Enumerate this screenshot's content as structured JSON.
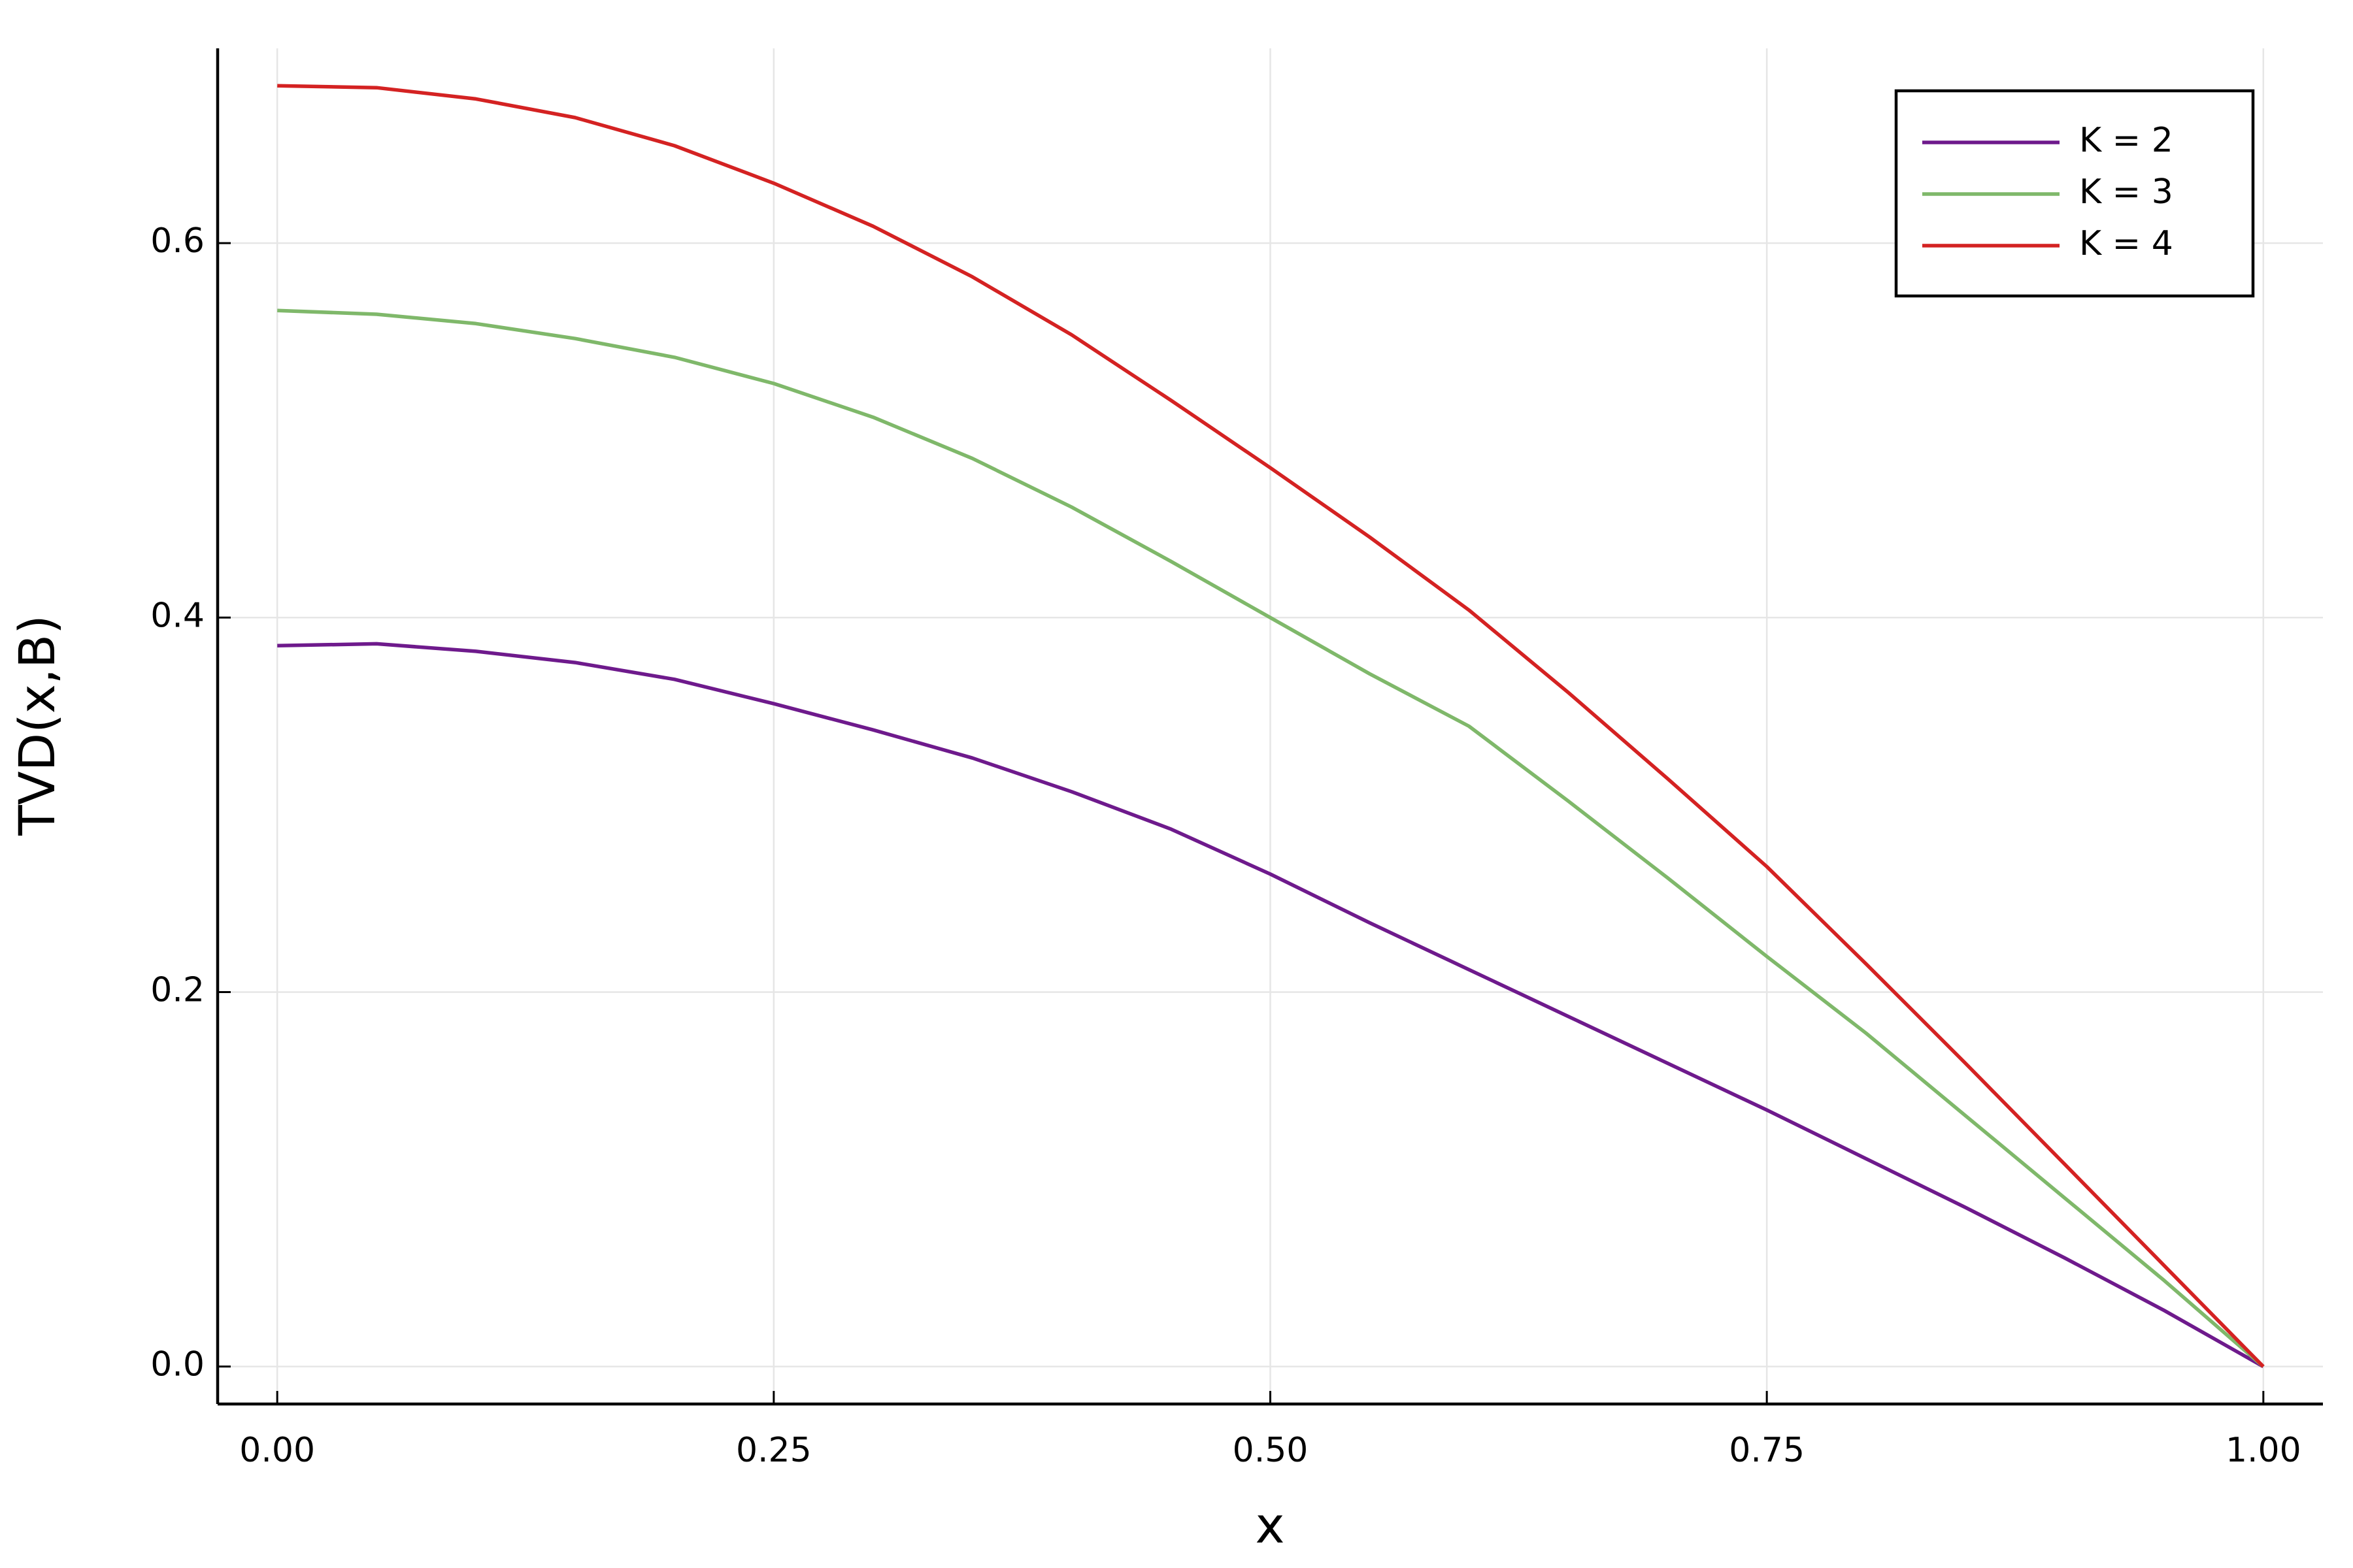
{
  "chart_data": {
    "type": "line",
    "xlabel": "x",
    "ylabel": "TVD(x,B)",
    "x": [
      0,
      0.05,
      0.1,
      0.15,
      0.2,
      0.25,
      0.3,
      0.35,
      0.4,
      0.45,
      0.5,
      0.55,
      0.6,
      0.65,
      0.7,
      0.75,
      0.8,
      0.85,
      0.9,
      0.95,
      1
    ],
    "series": [
      {
        "name": "K = 2",
        "color": "#6e1a8c",
        "values": [
          0.385,
          0.386,
          0.382,
          0.376,
          0.367,
          0.354,
          0.34,
          0.325,
          0.307,
          0.287,
          0.263,
          0.237,
          0.212,
          0.187,
          0.162,
          0.137,
          0.111,
          0.085,
          0.058,
          0.03,
          0
        ]
      },
      {
        "name": "K = 3",
        "color": "#7fb86a",
        "values": [
          0.564,
          0.562,
          0.557,
          0.549,
          0.539,
          0.525,
          0.507,
          0.485,
          0.459,
          0.43,
          0.4,
          0.37,
          0.342,
          0.302,
          0.261,
          0.219,
          0.178,
          0.134,
          0.09,
          0.046,
          0
        ]
      },
      {
        "name": "K = 4",
        "color": "#d42222",
        "values": [
          0.684,
          0.683,
          0.677,
          0.667,
          0.652,
          0.632,
          0.609,
          0.582,
          0.551,
          0.516,
          0.48,
          0.443,
          0.404,
          0.36,
          0.314,
          0.267,
          0.215,
          0.162,
          0.108,
          0.054,
          0
        ]
      }
    ],
    "xlim": [
      -0.03,
      1.03
    ],
    "xticks": [
      {
        "value": 0,
        "label": "0.00"
      },
      {
        "value": 0.25,
        "label": "0.25"
      },
      {
        "value": 0.5,
        "label": "0.50"
      },
      {
        "value": 0.75,
        "label": "0.75"
      },
      {
        "value": 1,
        "label": "1.00"
      }
    ],
    "ylim": [
      -0.02,
      0.704
    ],
    "yticks": [
      {
        "value": 0,
        "label": "0.0"
      },
      0.2,
      0.4,
      0.6
    ],
    "grid": true,
    "legend": "top right"
  }
}
